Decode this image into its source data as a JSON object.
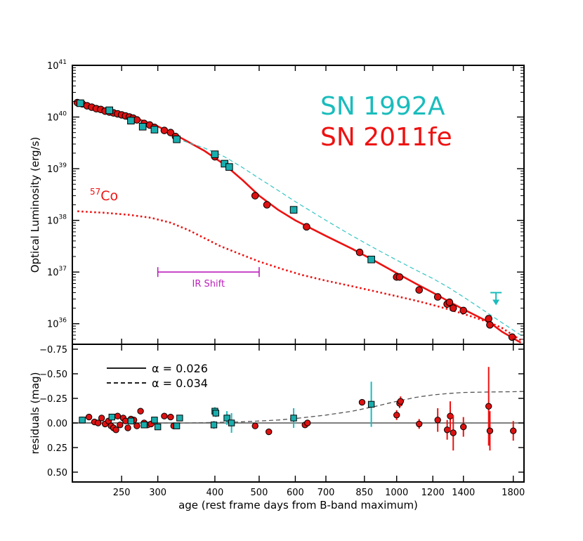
{
  "chart_data": [
    {
      "type": "scatter",
      "panel": "top",
      "ylabel": "Optical Luminosity (erg/s)",
      "yscale": "log",
      "ylim": [
        4e+35,
        1e+41
      ],
      "yticks": [
        {
          "base": "10",
          "exp": "41",
          "value": 1e+41
        },
        {
          "base": "10",
          "exp": "40",
          "value": 1e+40
        },
        {
          "base": "10",
          "exp": "39",
          "value": 1e+39
        },
        {
          "base": "10",
          "exp": "38",
          "value": 1e+38
        },
        {
          "base": "10",
          "exp": "37",
          "value": 1e+37
        },
        {
          "base": "10",
          "exp": "36",
          "value": 1e+36
        }
      ],
      "legend_text": [
        {
          "label": "SN 1992A",
          "color": "#1ABCBC"
        },
        {
          "label": "SN 2011fe",
          "color": "#EE1111"
        }
      ],
      "annotations": {
        "co57": {
          "sup": "57",
          "text": "Co",
          "color": "#EE1111"
        },
        "ir_shift": {
          "text": "IR Shift",
          "x_start": 300,
          "x_end": 500,
          "y": 1e+37,
          "color": "#BB22BB"
        }
      },
      "series": [
        {
          "name": "SN 2011fe",
          "marker": "circle",
          "color": "#DD1111",
          "points": [
            [
              200,
              1.9e+40
            ],
            [
              205,
              1.8e+40
            ],
            [
              210,
              1.65e+40
            ],
            [
              215,
              1.55e+40
            ],
            [
              220,
              1.45e+40
            ],
            [
              225,
              1.4e+40
            ],
            [
              230,
              1.3e+40
            ],
            [
              235,
              1.25e+40
            ],
            [
              240,
              1.2e+40
            ],
            [
              245,
              1.15e+40
            ],
            [
              250,
              1.1e+40
            ],
            [
              255,
              1.05e+40
            ],
            [
              260,
              1e+40
            ],
            [
              265,
              9.5e+39
            ],
            [
              270,
              8.8e+39
            ],
            [
              280,
              7.5e+39
            ],
            [
              288,
              7e+39
            ],
            [
              295,
              6.3e+39
            ],
            [
              310,
              5.5e+39
            ],
            [
              320,
              5e+39
            ],
            [
              328,
              4.2e+39
            ],
            [
              400,
              1.7e+39
            ],
            [
              490,
              3e+38
            ],
            [
              520,
              2e+38
            ],
            [
              635,
              7.5e+37
            ],
            [
              830,
              2.4e+37
            ],
            [
              1000,
              8e+36
            ],
            [
              1015,
              8e+36
            ],
            [
              1120,
              4.5e+36
            ],
            [
              1230,
              3.3e+36
            ],
            [
              1290,
              2.4e+36
            ],
            [
              1305,
              2.6e+36
            ],
            [
              1330,
              2e+36
            ],
            [
              1400,
              1.8e+36
            ],
            [
              1590,
              1.25e+36
            ],
            [
              1600,
              9.5e+35
            ],
            [
              1790,
              5.5e+35
            ]
          ]
        },
        {
          "name": "SN 1992A",
          "marker": "square",
          "color": "#1AADAD",
          "points": [
            [
              203,
              1.85e+40
            ],
            [
              235,
              1.35e+40
            ],
            [
              262,
              8.5e+39
            ],
            [
              278,
              6.5e+39
            ],
            [
              295,
              5.7e+39
            ],
            [
              330,
              3.7e+39
            ],
            [
              400,
              1.9e+39
            ],
            [
              420,
              1.25e+39
            ],
            [
              430,
              1.08e+39
            ],
            [
              595,
              1.6e+38
            ],
            [
              880,
              1.75e+37
            ]
          ]
        },
        {
          "name": "upper limit",
          "marker": "arrow-down",
          "color": "#1ABCBC",
          "points": [
            [
              1650,
              4e+36
            ]
          ]
        }
      ],
      "curves": [
        {
          "name": "SN 2011fe model",
          "style": "solid",
          "color": "#EE1111",
          "points": [
            [
              200,
              2e+40
            ],
            [
              250,
              1.2e+40
            ],
            [
              300,
              6.6e+39
            ],
            [
              340,
              3.8e+39
            ],
            [
              380,
              2.2e+39
            ],
            [
              420,
              1.2e+39
            ],
            [
              460,
              6e+38
            ],
            [
              500,
              3e+38
            ],
            [
              550,
              1.6e+38
            ],
            [
              600,
              1e+38
            ],
            [
              700,
              5e+37
            ],
            [
              800,
              2.8e+37
            ],
            [
              900,
              1.6e+37
            ],
            [
              1000,
              9.5e+36
            ],
            [
              1100,
              6e+36
            ],
            [
              1200,
              4e+36
            ],
            [
              1300,
              2.7e+36
            ],
            [
              1400,
              1.9e+36
            ],
            [
              1500,
              1.4e+36
            ],
            [
              1600,
              1.05e+36
            ],
            [
              1700,
              7e+35
            ],
            [
              1870,
              4.3e+35
            ]
          ]
        },
        {
          "name": "SN 1992A model",
          "style": "dashed",
          "color": "#33C5C5",
          "points": [
            [
              330,
              3.8e+39
            ],
            [
              380,
              2.5e+39
            ],
            [
              420,
              1.7e+39
            ],
            [
              460,
              1.05e+39
            ],
            [
              500,
              6.5e+38
            ],
            [
              550,
              3.8e+38
            ],
            [
              600,
              2.3e+38
            ],
            [
              700,
              1e+38
            ],
            [
              800,
              5e+37
            ],
            [
              900,
              2.8e+37
            ],
            [
              1000,
              1.7e+37
            ],
            [
              1100,
              1.1e+37
            ],
            [
              1200,
              7.5e+36
            ],
            [
              1300,
              5e+36
            ],
            [
              1400,
              3.3e+36
            ],
            [
              1500,
              2.2e+36
            ],
            [
              1600,
              1.5e+36
            ],
            [
              1700,
              1.05e+36
            ],
            [
              1870,
              6e+35
            ]
          ]
        },
        {
          "name": "57Co",
          "style": "dotted",
          "color": "#EE1111",
          "points": [
            [
              200,
              1.5e+38
            ],
            [
              230,
              1.4e+38
            ],
            [
              260,
              1.28e+38
            ],
            [
              290,
              1.12e+38
            ],
            [
              320,
              9e+37
            ],
            [
              350,
              6.5e+37
            ],
            [
              380,
              4.5e+37
            ],
            [
              410,
              3.2e+37
            ],
            [
              450,
              2.3e+37
            ],
            [
              500,
              1.6e+37
            ],
            [
              560,
              1.15e+37
            ],
            [
              620,
              8.8e+36
            ],
            [
              700,
              6.8e+36
            ],
            [
              800,
              5.3e+36
            ],
            [
              900,
              4.2e+36
            ],
            [
              1000,
              3.4e+36
            ],
            [
              1100,
              2.8e+36
            ],
            [
              1200,
              2.3e+36
            ],
            [
              1300,
              1.9e+36
            ],
            [
              1400,
              1.55e+36
            ],
            [
              1500,
              1.27e+36
            ],
            [
              1600,
              1.05e+36
            ],
            [
              1700,
              8.3e+35
            ],
            [
              1870,
              4.8e+35
            ]
          ]
        }
      ]
    },
    {
      "type": "scatter",
      "panel": "bottom",
      "title": "",
      "xlabel": "age (rest frame days from B-band maximum)",
      "ylabel": "residuals (mag)",
      "ylim": [
        -0.8,
        0.6
      ],
      "y_inverted": true,
      "xscale": "log",
      "xlim": [
        195,
        1900
      ],
      "xticks": [
        {
          "label": "250",
          "value": 250
        },
        {
          "label": "300",
          "value": 300
        },
        {
          "label": "400",
          "value": 400
        },
        {
          "label": "500",
          "value": 500
        },
        {
          "label": "600",
          "value": 600
        },
        {
          "label": "700",
          "value": 700
        },
        {
          "label": "850",
          "value": 850
        },
        {
          "label": "1000",
          "value": 1000
        },
        {
          "label": "1200",
          "value": 1200
        },
        {
          "label": "1400",
          "value": 1400
        },
        {
          "label": "1800",
          "value": 1800
        }
      ],
      "yticks": [
        {
          "label": "−0.75",
          "value": -0.75
        },
        {
          "label": "−0.50",
          "value": -0.5
        },
        {
          "label": "−0.25",
          "value": -0.25
        },
        {
          "label": "0.00",
          "value": 0
        },
        {
          "label": "0.25",
          "value": 0.25
        },
        {
          "label": "0.50",
          "value": 0.5
        }
      ],
      "legend": [
        {
          "style": "solid",
          "label": "α = 0.026"
        },
        {
          "style": "dashed",
          "label": "α = 0.034"
        }
      ],
      "series": [
        {
          "name": "SN 2011fe residuals",
          "marker": "circle",
          "color": "#DD1111",
          "points": [
            [
              205,
              -0.03,
              0
            ],
            [
              212,
              -0.06,
              0
            ],
            [
              218,
              -0.01,
              0
            ],
            [
              222,
              0.0,
              0
            ],
            [
              226,
              -0.05,
              0
            ],
            [
              230,
              0.01,
              0
            ],
            [
              234,
              -0.02,
              0
            ],
            [
              237,
              0.03,
              0
            ],
            [
              240,
              0.05,
              0
            ],
            [
              243,
              0.07,
              0
            ],
            [
              245,
              -0.07,
              0
            ],
            [
              248,
              0.02,
              0
            ],
            [
              252,
              -0.05,
              0
            ],
            [
              255,
              -0.02,
              0
            ],
            [
              258,
              0.05,
              0
            ],
            [
              262,
              -0.04,
              0
            ],
            [
              266,
              -0.03,
              0
            ],
            [
              270,
              0.03,
              0
            ],
            [
              275,
              -0.12,
              0
            ],
            [
              280,
              0.0,
              0
            ],
            [
              285,
              0.02,
              0
            ],
            [
              290,
              0.01,
              0
            ],
            [
              310,
              -0.07,
              0
            ],
            [
              320,
              -0.06,
              0
            ],
            [
              325,
              0.03,
              0
            ],
            [
              490,
              0.03,
              0
            ],
            [
              525,
              0.09,
              0
            ],
            [
              630,
              0.02,
              0
            ],
            [
              638,
              0.0,
              0
            ],
            [
              840,
              -0.21,
              0
            ],
            [
              1000,
              -0.08,
              0.05
            ],
            [
              1015,
              -0.2,
              0.05
            ],
            [
              1020,
              -0.22,
              0.05
            ],
            [
              1120,
              0.01,
              0.05
            ],
            [
              1230,
              -0.03,
              0.12
            ],
            [
              1290,
              0.07,
              0.1
            ],
            [
              1310,
              -0.07,
              0.15
            ],
            [
              1330,
              0.1,
              0.18
            ],
            [
              1400,
              0.04,
              0.1
            ],
            [
              1590,
              -0.17,
              0.4
            ],
            [
              1600,
              0.08,
              0.2
            ],
            [
              1800,
              0.08,
              0.1
            ]
          ]
        },
        {
          "name": "SN 1992A residuals",
          "marker": "square",
          "color": "#1AADAD",
          "points": [
            [
              205,
              -0.03,
              0
            ],
            [
              238,
              -0.06,
              0
            ],
            [
              262,
              -0.02,
              0
            ],
            [
              280,
              0.02,
              0
            ],
            [
              295,
              -0.03,
              0
            ],
            [
              300,
              0.04,
              0
            ],
            [
              330,
              0.03,
              0
            ],
            [
              335,
              -0.05,
              0
            ],
            [
              398,
              0.02,
              0.04
            ],
            [
              400,
              -0.12,
              0.04
            ],
            [
              402,
              -0.1,
              0.04
            ],
            [
              425,
              -0.05,
              0.07
            ],
            [
              435,
              0.0,
              0.1
            ],
            [
              595,
              -0.05,
              0.1
            ],
            [
              880,
              -0.19,
              0.23
            ]
          ]
        }
      ],
      "curves": [
        {
          "name": "α = 0.026",
          "style": "solid",
          "color": "#555555",
          "points": [
            [
              195,
              0
            ],
            [
              1900,
              0
            ]
          ]
        },
        {
          "name": "α = 0.034",
          "style": "dashed",
          "color": "#555555",
          "points": [
            [
              195,
              0
            ],
            [
              350,
              0
            ],
            [
              400,
              -0.005
            ],
            [
              450,
              -0.01
            ],
            [
              500,
              -0.02
            ],
            [
              550,
              -0.03
            ],
            [
              600,
              -0.045
            ],
            [
              700,
              -0.08
            ],
            [
              800,
              -0.12
            ],
            [
              900,
              -0.17
            ],
            [
              1000,
              -0.22
            ],
            [
              1100,
              -0.26
            ],
            [
              1200,
              -0.285
            ],
            [
              1300,
              -0.3
            ],
            [
              1400,
              -0.31
            ],
            [
              1600,
              -0.315
            ],
            [
              1800,
              -0.318
            ],
            [
              1900,
              -0.32
            ]
          ]
        }
      ]
    }
  ]
}
